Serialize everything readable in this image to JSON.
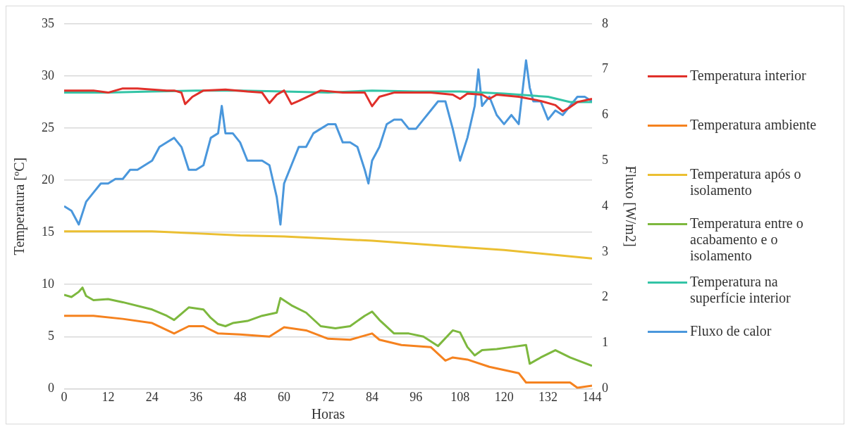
{
  "chart_data": {
    "type": "line",
    "xlabel": "Horas",
    "ylabel": "Temperatura [ºC]",
    "y2label": "Fluxo [W/m2]",
    "xlim": [
      0,
      144
    ],
    "xticks": [
      0,
      12,
      24,
      36,
      48,
      60,
      72,
      84,
      96,
      108,
      120,
      132,
      144
    ],
    "ylim": [
      0,
      35
    ],
    "yticks": [
      0,
      5,
      10,
      15,
      20,
      25,
      30,
      35
    ],
    "y2lim": [
      0,
      8
    ],
    "y2ticks": [
      0,
      1,
      2,
      3,
      4,
      5,
      6,
      7,
      8
    ],
    "grid": "y",
    "legend": "right",
    "marker": "none",
    "line_style": "solid",
    "series": [
      {
        "name": "Temperatura interior",
        "color": "#e0302a",
        "x": [
          0,
          8,
          12,
          16,
          20,
          24,
          28,
          30,
          32,
          33,
          35,
          38,
          44,
          50,
          54,
          56,
          58,
          60,
          62,
          64,
          70,
          76,
          82,
          84,
          86,
          90,
          100,
          106,
          108,
          110,
          114,
          116,
          118,
          124,
          130,
          134,
          136,
          138,
          140,
          144
        ],
        "values": [
          28.6,
          28.6,
          28.4,
          28.8,
          28.8,
          28.7,
          28.6,
          28.6,
          28.4,
          27.3,
          28.0,
          28.6,
          28.7,
          28.5,
          28.4,
          27.4,
          28.2,
          28.6,
          27.3,
          27.6,
          28.6,
          28.4,
          28.4,
          27.1,
          28.0,
          28.4,
          28.4,
          28.2,
          27.8,
          28.3,
          28.2,
          27.8,
          28.2,
          28.0,
          27.6,
          27.2,
          26.6,
          27.0,
          27.5,
          27.8
        ]
      },
      {
        "name": "Temperatura ambiente",
        "color": "#f5821f",
        "x": [
          0,
          8,
          16,
          24,
          30,
          34,
          38,
          42,
          48,
          56,
          60,
          66,
          72,
          78,
          84,
          86,
          92,
          100,
          104,
          106,
          110,
          116,
          124,
          126,
          132,
          138,
          140,
          144
        ],
        "values": [
          7.0,
          7.0,
          6.7,
          6.3,
          5.3,
          6.0,
          6.0,
          5.3,
          5.2,
          5.0,
          5.9,
          5.6,
          4.8,
          4.7,
          5.3,
          4.7,
          4.2,
          4.0,
          2.7,
          3.0,
          2.8,
          2.1,
          1.5,
          0.6,
          0.6,
          0.6,
          0.1,
          0.3
        ]
      },
      {
        "name": "Temperatura após o isolamento",
        "color": "#ebbf32",
        "x": [
          0,
          24,
          36,
          48,
          60,
          72,
          84,
          96,
          108,
          120,
          132,
          144
        ],
        "values": [
          15.1,
          15.1,
          14.9,
          14.7,
          14.6,
          14.4,
          14.2,
          13.9,
          13.6,
          13.3,
          12.9,
          12.5
        ]
      },
      {
        "name": "Temperatura entre o acabamento e o isolamento",
        "color": "#7db83e",
        "x": [
          0,
          2,
          4,
          5,
          6,
          8,
          12,
          16,
          24,
          28,
          30,
          34,
          38,
          40,
          42,
          44,
          46,
          50,
          54,
          58,
          59,
          62,
          66,
          70,
          74,
          78,
          82,
          84,
          86,
          90,
          94,
          98,
          102,
          106,
          108,
          110,
          112,
          114,
          118,
          122,
          126,
          127,
          130,
          134,
          138,
          144
        ],
        "values": [
          9.0,
          8.8,
          9.3,
          9.7,
          8.9,
          8.5,
          8.6,
          8.3,
          7.6,
          7.0,
          6.6,
          7.8,
          7.6,
          6.8,
          6.2,
          6.0,
          6.3,
          6.5,
          7.0,
          7.3,
          8.7,
          8.0,
          7.3,
          6.0,
          5.8,
          6.0,
          7.0,
          7.4,
          6.6,
          5.3,
          5.3,
          5.0,
          4.1,
          5.6,
          5.4,
          4.0,
          3.2,
          3.7,
          3.8,
          4.0,
          4.2,
          2.4,
          3.0,
          3.7,
          3.0,
          2.2
        ]
      },
      {
        "name": "Temperatura na superfície interior",
        "color": "#33c4a6",
        "x": [
          0,
          12,
          24,
          36,
          48,
          60,
          72,
          84,
          96,
          108,
          120,
          132,
          138,
          144
        ],
        "values": [
          28.4,
          28.4,
          28.5,
          28.6,
          28.6,
          28.5,
          28.4,
          28.6,
          28.5,
          28.5,
          28.3,
          28.0,
          27.5,
          27.5
        ]
      },
      {
        "name": "Fluxo de calor",
        "color": "#4a97dc",
        "axis": "y2",
        "x": [
          0,
          2,
          4,
          6,
          8,
          10,
          12,
          14,
          16,
          18,
          20,
          22,
          24,
          26,
          28,
          30,
          32,
          34,
          36,
          38,
          40,
          42,
          43,
          44,
          46,
          48,
          50,
          52,
          54,
          56,
          58,
          59,
          60,
          62,
          64,
          66,
          68,
          70,
          72,
          74,
          76,
          78,
          80,
          82,
          83,
          84,
          86,
          88,
          90,
          92,
          94,
          96,
          98,
          100,
          102,
          104,
          106,
          108,
          110,
          112,
          113,
          114,
          116,
          118,
          120,
          122,
          124,
          126,
          127,
          128,
          130,
          132,
          134,
          136,
          138,
          140,
          142,
          144
        ],
        "values": [
          4.0,
          3.9,
          3.6,
          4.1,
          4.3,
          4.5,
          4.5,
          4.6,
          4.6,
          4.8,
          4.8,
          4.9,
          5.0,
          5.3,
          5.4,
          5.5,
          5.3,
          4.8,
          4.8,
          4.9,
          5.5,
          5.6,
          6.2,
          5.6,
          5.6,
          5.4,
          5.0,
          5.0,
          5.0,
          4.9,
          4.2,
          3.6,
          4.5,
          4.9,
          5.3,
          5.3,
          5.6,
          5.7,
          5.8,
          5.8,
          5.4,
          5.4,
          5.3,
          4.8,
          4.5,
          5.0,
          5.3,
          5.8,
          5.9,
          5.9,
          5.7,
          5.7,
          5.9,
          6.1,
          6.3,
          6.3,
          5.7,
          5.0,
          5.5,
          6.2,
          7.0,
          6.2,
          6.4,
          6.0,
          5.8,
          6.0,
          5.8,
          7.2,
          6.6,
          6.3,
          6.3,
          5.9,
          6.1,
          6.0,
          6.2,
          6.4,
          6.4,
          6.3
        ]
      }
    ]
  }
}
